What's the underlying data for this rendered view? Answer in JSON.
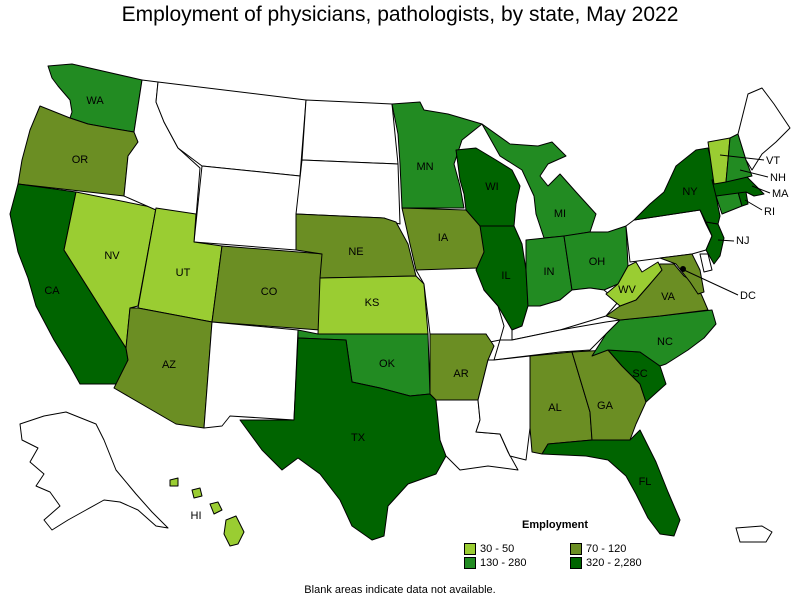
{
  "title": "Employment of physicians, pathologists, by state, May 2022",
  "footnote": "Blank areas indicate data not available.",
  "colors": {
    "none": "#ffffff",
    "c30_50": "#9acd32",
    "c70_120": "#6b8e23",
    "c130_280": "#228b22",
    "c320_2280": "#006400"
  },
  "legend": {
    "title": "Employment",
    "items": [
      {
        "label": "30 - 50",
        "color": "#9acd32"
      },
      {
        "label": "70 - 120",
        "color": "#6b8e23"
      },
      {
        "label": "130 - 280",
        "color": "#228b22"
      },
      {
        "label": "320 - 2,280",
        "color": "#006400"
      }
    ]
  },
  "state_labels": {
    "WA": "WA",
    "OR": "OR",
    "CA": "CA",
    "NV": "NV",
    "UT": "UT",
    "AZ": "AZ",
    "CO": "CO",
    "NE": "NE",
    "KS": "KS",
    "OK": "OK",
    "TX": "TX",
    "MN": "MN",
    "IA": "IA",
    "AR": "AR",
    "WI": "WI",
    "IL": "IL",
    "MI": "MI",
    "IN": "IN",
    "OH": "OH",
    "AL": "AL",
    "GA": "GA",
    "FL": "FL",
    "SC": "SC",
    "NC": "NC",
    "VA": "VA",
    "WV": "WV",
    "NY": "NY",
    "NJ": "NJ",
    "VT": "VT",
    "NH": "NH",
    "MA": "MA",
    "RI": "RI",
    "DC": "DC",
    "HI": "HI"
  },
  "state_classes": {
    "WA": "130 - 280",
    "OR": "70 - 120",
    "CA": "320 - 2,280",
    "NV": "30 - 50",
    "UT": "30 - 50",
    "AZ": "70 - 120",
    "CO": "70 - 120",
    "NE": "70 - 120",
    "KS": "30 - 50",
    "OK": "130 - 280",
    "TX": "320 - 2,280",
    "MN": "130 - 280",
    "IA": "70 - 120",
    "AR": "70 - 120",
    "WI": "320 - 2,280",
    "IL": "320 - 2,280",
    "MI": "130 - 280",
    "IN": "130 - 280",
    "OH": "130 - 280",
    "AL": "70 - 120",
    "GA": "70 - 120",
    "FL": "320 - 2,280",
    "SC": "320 - 2,280",
    "NC": "130 - 280",
    "VA": "70 - 120",
    "WV": "30 - 50",
    "NY": "320 - 2,280",
    "NJ": "320 - 2,280",
    "VT": "30 - 50",
    "NH": "130 - 280",
    "MA": "320 - 2,280",
    "RI": "320 - 2,280",
    "HI": "30 - 50",
    "MD": "70 - 120",
    "CT": "130 - 280",
    "ID": null,
    "MT": null,
    "WY": null,
    "ND": null,
    "SD": null,
    "NM": null,
    "MO": null,
    "LA": null,
    "MS": null,
    "TN": null,
    "KY": null,
    "PA": null,
    "ME": null,
    "DE": null,
    "AK": null,
    "PR": null
  }
}
